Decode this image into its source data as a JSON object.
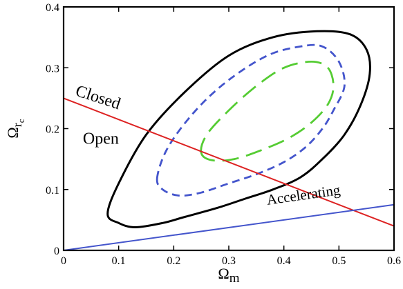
{
  "chart_data": {
    "type": "line",
    "xlabel": "Ω",
    "xlabel_sub": "m",
    "ylabel": "Ω",
    "ylabel_sub": "r",
    "ylabel_subsub": "c",
    "xlim": [
      0,
      0.6
    ],
    "ylim": [
      0,
      0.4
    ],
    "x_ticks": [
      0,
      0.1,
      0.2,
      0.3,
      0.4,
      0.5,
      0.6
    ],
    "y_ticks": [
      0,
      0.1,
      0.2,
      0.3,
      0.4
    ],
    "x_tick_labels": [
      "0",
      "0.1",
      "0.2",
      "0.3",
      "0.4",
      "0.5",
      "0.6"
    ],
    "y_tick_labels": [
      "0",
      "0.1",
      "0.2",
      "0.3",
      "0.4"
    ],
    "grid": false,
    "series": [
      {
        "style": "solid",
        "color": "#dd2222",
        "x": [
          0,
          0.6
        ],
        "y": [
          0.25,
          0.04
        ]
      },
      {
        "style": "solid",
        "color": "#4455cc",
        "x": [
          0,
          0.6
        ],
        "y": [
          0,
          0.075
        ]
      }
    ],
    "contours": [
      {
        "style": "solid",
        "color": "#000000",
        "x": [
          0.08,
          0.1,
          0.13,
          0.18,
          0.22,
          0.28,
          0.33,
          0.38,
          0.43,
          0.47,
          0.51,
          0.54,
          0.556,
          0.55,
          0.52,
          0.46,
          0.38,
          0.3,
          0.22,
          0.15,
          0.1,
          0.08
        ],
        "y": [
          0.06,
          0.045,
          0.038,
          0.045,
          0.055,
          0.07,
          0.085,
          0.1,
          0.12,
          0.15,
          0.19,
          0.24,
          0.29,
          0.33,
          0.355,
          0.36,
          0.35,
          0.32,
          0.26,
          0.19,
          0.11,
          0.06
        ]
      },
      {
        "style": "dashed",
        "color": "#4455cc",
        "x": [
          0.17,
          0.18,
          0.21,
          0.25,
          0.3,
          0.35,
          0.4,
          0.44,
          0.47,
          0.49,
          0.51,
          0.5,
          0.47,
          0.43,
          0.37,
          0.3,
          0.24,
          0.19,
          0.17
        ],
        "y": [
          0.12,
          0.1,
          0.09,
          0.095,
          0.11,
          0.125,
          0.145,
          0.17,
          0.2,
          0.23,
          0.27,
          0.31,
          0.335,
          0.335,
          0.32,
          0.28,
          0.23,
          0.17,
          0.12
        ]
      },
      {
        "style": "longdash",
        "color": "#55cc33",
        "x": [
          0.25,
          0.27,
          0.31,
          0.36,
          0.41,
          0.45,
          0.48,
          0.49,
          0.48,
          0.45,
          0.4,
          0.35,
          0.3,
          0.26,
          0.25
        ],
        "y": [
          0.16,
          0.148,
          0.15,
          0.165,
          0.185,
          0.21,
          0.24,
          0.27,
          0.3,
          0.31,
          0.3,
          0.27,
          0.23,
          0.19,
          0.16
        ]
      }
    ],
    "annotations": [
      {
        "text": "Closed",
        "x": 0.02,
        "y": 0.255,
        "rotate": 18
      },
      {
        "text": "Open",
        "x": 0.035,
        "y": 0.175,
        "rotate": 0
      },
      {
        "text": "Accelerating",
        "x": 0.37,
        "y": 0.075,
        "rotate": -8
      }
    ]
  }
}
